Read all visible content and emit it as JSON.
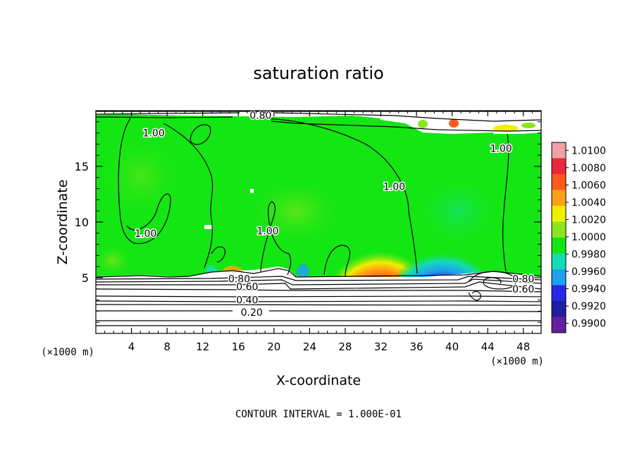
{
  "chart_data": {
    "type": "heatmap",
    "title": "saturation ratio",
    "xlabel": "X-coordinate",
    "ylabel": "Z-coordinate",
    "x_unit": "(×1000 m)",
    "y_unit": "(×1000 m)",
    "xlim": [
      0,
      50
    ],
    "ylim": [
      0,
      20
    ],
    "x_ticks": [
      4,
      8,
      12,
      16,
      20,
      24,
      28,
      32,
      36,
      40,
      44,
      48
    ],
    "y_ticks": [
      5,
      10,
      15
    ],
    "footer": "CONTOUR INTERVAL = 1.000E-01",
    "colorbar": {
      "labels": [
        "1.0100",
        "1.0080",
        "1.0060",
        "1.0040",
        "1.0020",
        "1.0000",
        "0.9980",
        "0.9960",
        "0.9940",
        "0.9920",
        "0.9900"
      ],
      "colors": [
        "#f0a0a8",
        "#e8283c",
        "#ff5a1e",
        "#ffa018",
        "#f0f000",
        "#8ce61e",
        "#14e614",
        "#14dcb4",
        "#1ea0f0",
        "#2828e6",
        "#1e1ea0",
        "#641ea0"
      ]
    },
    "contour_labels": [
      {
        "text": "0.80",
        "x": 18.5,
        "y": 19.6
      },
      {
        "text": "1.00",
        "x": 6.5,
        "y": 18.0
      },
      {
        "text": "1.00",
        "x": 45.5,
        "y": 16.6
      },
      {
        "text": "1.00",
        "x": 33.5,
        "y": 13.2
      },
      {
        "text": "1.00",
        "x": 19.3,
        "y": 9.2
      },
      {
        "text": "1.00",
        "x": 5.6,
        "y": 9.0
      },
      {
        "text": "0.80",
        "x": 16.1,
        "y": 4.9
      },
      {
        "text": "0.60",
        "x": 17.0,
        "y": 4.2
      },
      {
        "text": "0.40",
        "x": 17.0,
        "y": 3.0
      },
      {
        "text": "0.20",
        "x": 17.5,
        "y": 1.9
      },
      {
        "text": "0.80",
        "x": 48.0,
        "y": 4.9
      },
      {
        "text": "0.60",
        "x": 48.0,
        "y": 4.0
      }
    ]
  }
}
